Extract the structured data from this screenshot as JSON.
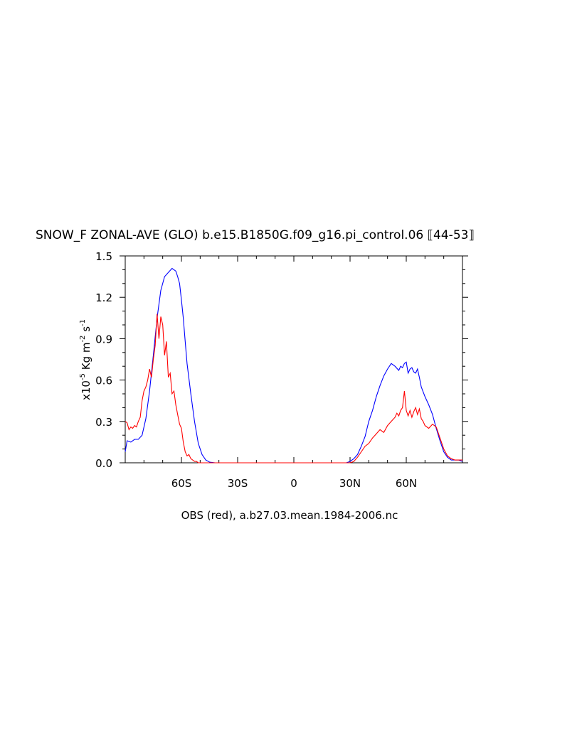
{
  "chart_data": {
    "type": "line",
    "title_main": "SNOW_F ZONAL-AVE (GLO) b.e15.B1850G.f09_g16.pi_control.06",
    "title_years": "44-53",
    "ylabel": {
      "prefix": "x10",
      "exp1": "-5",
      "unit1": " Kg m",
      "exp2": "-2",
      "unit2": " s",
      "exp3": "-1"
    },
    "xlabel": "OBS (red), a.b27.03.mean.1984-2006.nc",
    "xlim": [
      -90,
      90
    ],
    "ylim": [
      0,
      1.5
    ],
    "xticks": [
      {
        "value": -60,
        "label": "60S"
      },
      {
        "value": -30,
        "label": "30S"
      },
      {
        "value": 0,
        "label": "0"
      },
      {
        "value": 30,
        "label": "30N"
      },
      {
        "value": 60,
        "label": "60N"
      }
    ],
    "yticks": [
      {
        "value": 0.0,
        "label": "0.0"
      },
      {
        "value": 0.3,
        "label": "0.3"
      },
      {
        "value": 0.6,
        "label": "0.6"
      },
      {
        "value": 0.9,
        "label": "0.9"
      },
      {
        "value": 1.2,
        "label": "1.2"
      },
      {
        "value": 1.5,
        "label": "1.5"
      }
    ],
    "grid": false,
    "series": [
      {
        "color": "#0000ff",
        "x": [
          -90,
          -89,
          -87,
          -85,
          -83,
          -81,
          -79,
          -77,
          -75,
          -73,
          -71,
          -69,
          -67,
          -65,
          -63,
          -62,
          -61,
          -60,
          -59,
          -58,
          -57,
          -55,
          -53,
          -51,
          -49,
          -47,
          -45,
          -42,
          -40,
          -35,
          -20,
          0,
          20,
          28,
          30,
          32,
          34,
          36,
          38,
          40,
          42,
          44,
          46,
          48,
          50,
          52,
          54,
          56,
          57,
          58,
          59,
          60,
          61,
          62,
          63,
          64,
          65,
          66,
          67,
          68,
          70,
          72,
          74,
          76,
          78,
          80,
          82,
          84,
          86,
          88,
          90
        ],
        "y": [
          0.08,
          0.16,
          0.15,
          0.17,
          0.17,
          0.2,
          0.32,
          0.52,
          0.78,
          1.05,
          1.25,
          1.35,
          1.38,
          1.41,
          1.39,
          1.35,
          1.3,
          1.18,
          1.05,
          0.88,
          0.72,
          0.5,
          0.3,
          0.14,
          0.06,
          0.02,
          0.005,
          0.0,
          0.0,
          0.0,
          0.0,
          0.0,
          0.0,
          0.0,
          0.01,
          0.03,
          0.06,
          0.12,
          0.19,
          0.3,
          0.38,
          0.48,
          0.56,
          0.63,
          0.68,
          0.72,
          0.7,
          0.67,
          0.7,
          0.69,
          0.72,
          0.73,
          0.65,
          0.68,
          0.69,
          0.66,
          0.65,
          0.68,
          0.62,
          0.55,
          0.48,
          0.42,
          0.35,
          0.25,
          0.16,
          0.08,
          0.04,
          0.02,
          0.02,
          0.02,
          0.01
        ]
      },
      {
        "color": "#ff0000",
        "x": [
          -90,
          -89,
          -88,
          -87,
          -86,
          -85,
          -84,
          -83,
          -82,
          -81,
          -80,
          -79,
          -78,
          -77,
          -76,
          -75,
          -74,
          -73,
          -72,
          -71,
          -70,
          -69,
          -68,
          -67,
          -66,
          -65,
          -64,
          -63,
          -62,
          -61,
          -60,
          -59,
          -58,
          -57,
          -56,
          -55,
          -54,
          -53,
          -52,
          -51,
          -50,
          -49,
          -48,
          -46,
          -44,
          -40,
          -30,
          0,
          30,
          32,
          34,
          36,
          38,
          40,
          42,
          44,
          46,
          48,
          50,
          52,
          54,
          55,
          56,
          57,
          58,
          59,
          60,
          61,
          62,
          63,
          64,
          65,
          66,
          67,
          68,
          69,
          70,
          72,
          74,
          76,
          78,
          80,
          82,
          84,
          86,
          88,
          90
        ],
        "y": [
          0.3,
          0.29,
          0.24,
          0.26,
          0.25,
          0.27,
          0.26,
          0.3,
          0.33,
          0.45,
          0.52,
          0.55,
          0.6,
          0.68,
          0.62,
          0.75,
          0.85,
          1.08,
          0.9,
          1.06,
          1.0,
          0.78,
          0.88,
          0.62,
          0.65,
          0.5,
          0.52,
          0.42,
          0.35,
          0.28,
          0.25,
          0.15,
          0.08,
          0.05,
          0.06,
          0.03,
          0.02,
          0.01,
          0.01,
          0.0,
          0.0,
          0.0,
          0.0,
          0.0,
          0.0,
          0.0,
          0.0,
          0.0,
          0.0,
          0.01,
          0.04,
          0.08,
          0.12,
          0.14,
          0.18,
          0.21,
          0.24,
          0.22,
          0.27,
          0.3,
          0.33,
          0.36,
          0.34,
          0.38,
          0.4,
          0.52,
          0.38,
          0.34,
          0.38,
          0.33,
          0.37,
          0.4,
          0.35,
          0.39,
          0.32,
          0.3,
          0.27,
          0.25,
          0.28,
          0.26,
          0.18,
          0.1,
          0.05,
          0.03,
          0.02,
          0.02,
          0.02
        ]
      }
    ]
  }
}
